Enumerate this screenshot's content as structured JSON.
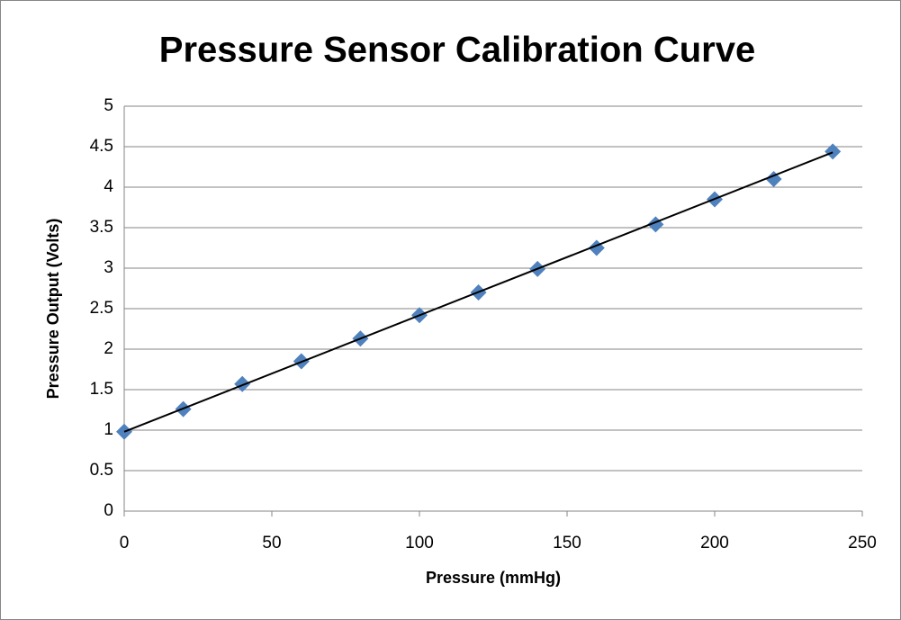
{
  "chart_data": {
    "type": "scatter",
    "title": "Pressure Sensor Calibration Curve",
    "xlabel": "Pressure (mmHg)",
    "ylabel": "Pressure Output (Volts)",
    "x": [
      0,
      20,
      40,
      60,
      80,
      100,
      120,
      140,
      160,
      180,
      200,
      220,
      240
    ],
    "series": [
      {
        "color": "#4f81bd",
        "values": [
          0.98,
          1.26,
          1.57,
          1.85,
          2.13,
          2.42,
          2.7,
          2.99,
          3.25,
          3.54,
          3.85,
          4.1,
          4.44
        ]
      }
    ],
    "trendline": {
      "x": [
        0,
        240
      ],
      "values": [
        0.98,
        4.43
      ],
      "color": "#000000"
    },
    "xlim": [
      0,
      250
    ],
    "xticks": [
      0,
      50,
      100,
      150,
      200,
      250
    ],
    "ylim": [
      0,
      5
    ],
    "yticks": [
      0,
      {
        "value": 0.5,
        "label": "0.5"
      },
      1,
      {
        "value": 1.5,
        "label": "1.5"
      },
      2,
      {
        "value": 2.5,
        "label": "2.5"
      },
      3,
      {
        "value": 3.5,
        "label": "3.5"
      },
      4,
      {
        "value": 4.5,
        "label": "4.5"
      },
      5
    ],
    "grid": true
  }
}
